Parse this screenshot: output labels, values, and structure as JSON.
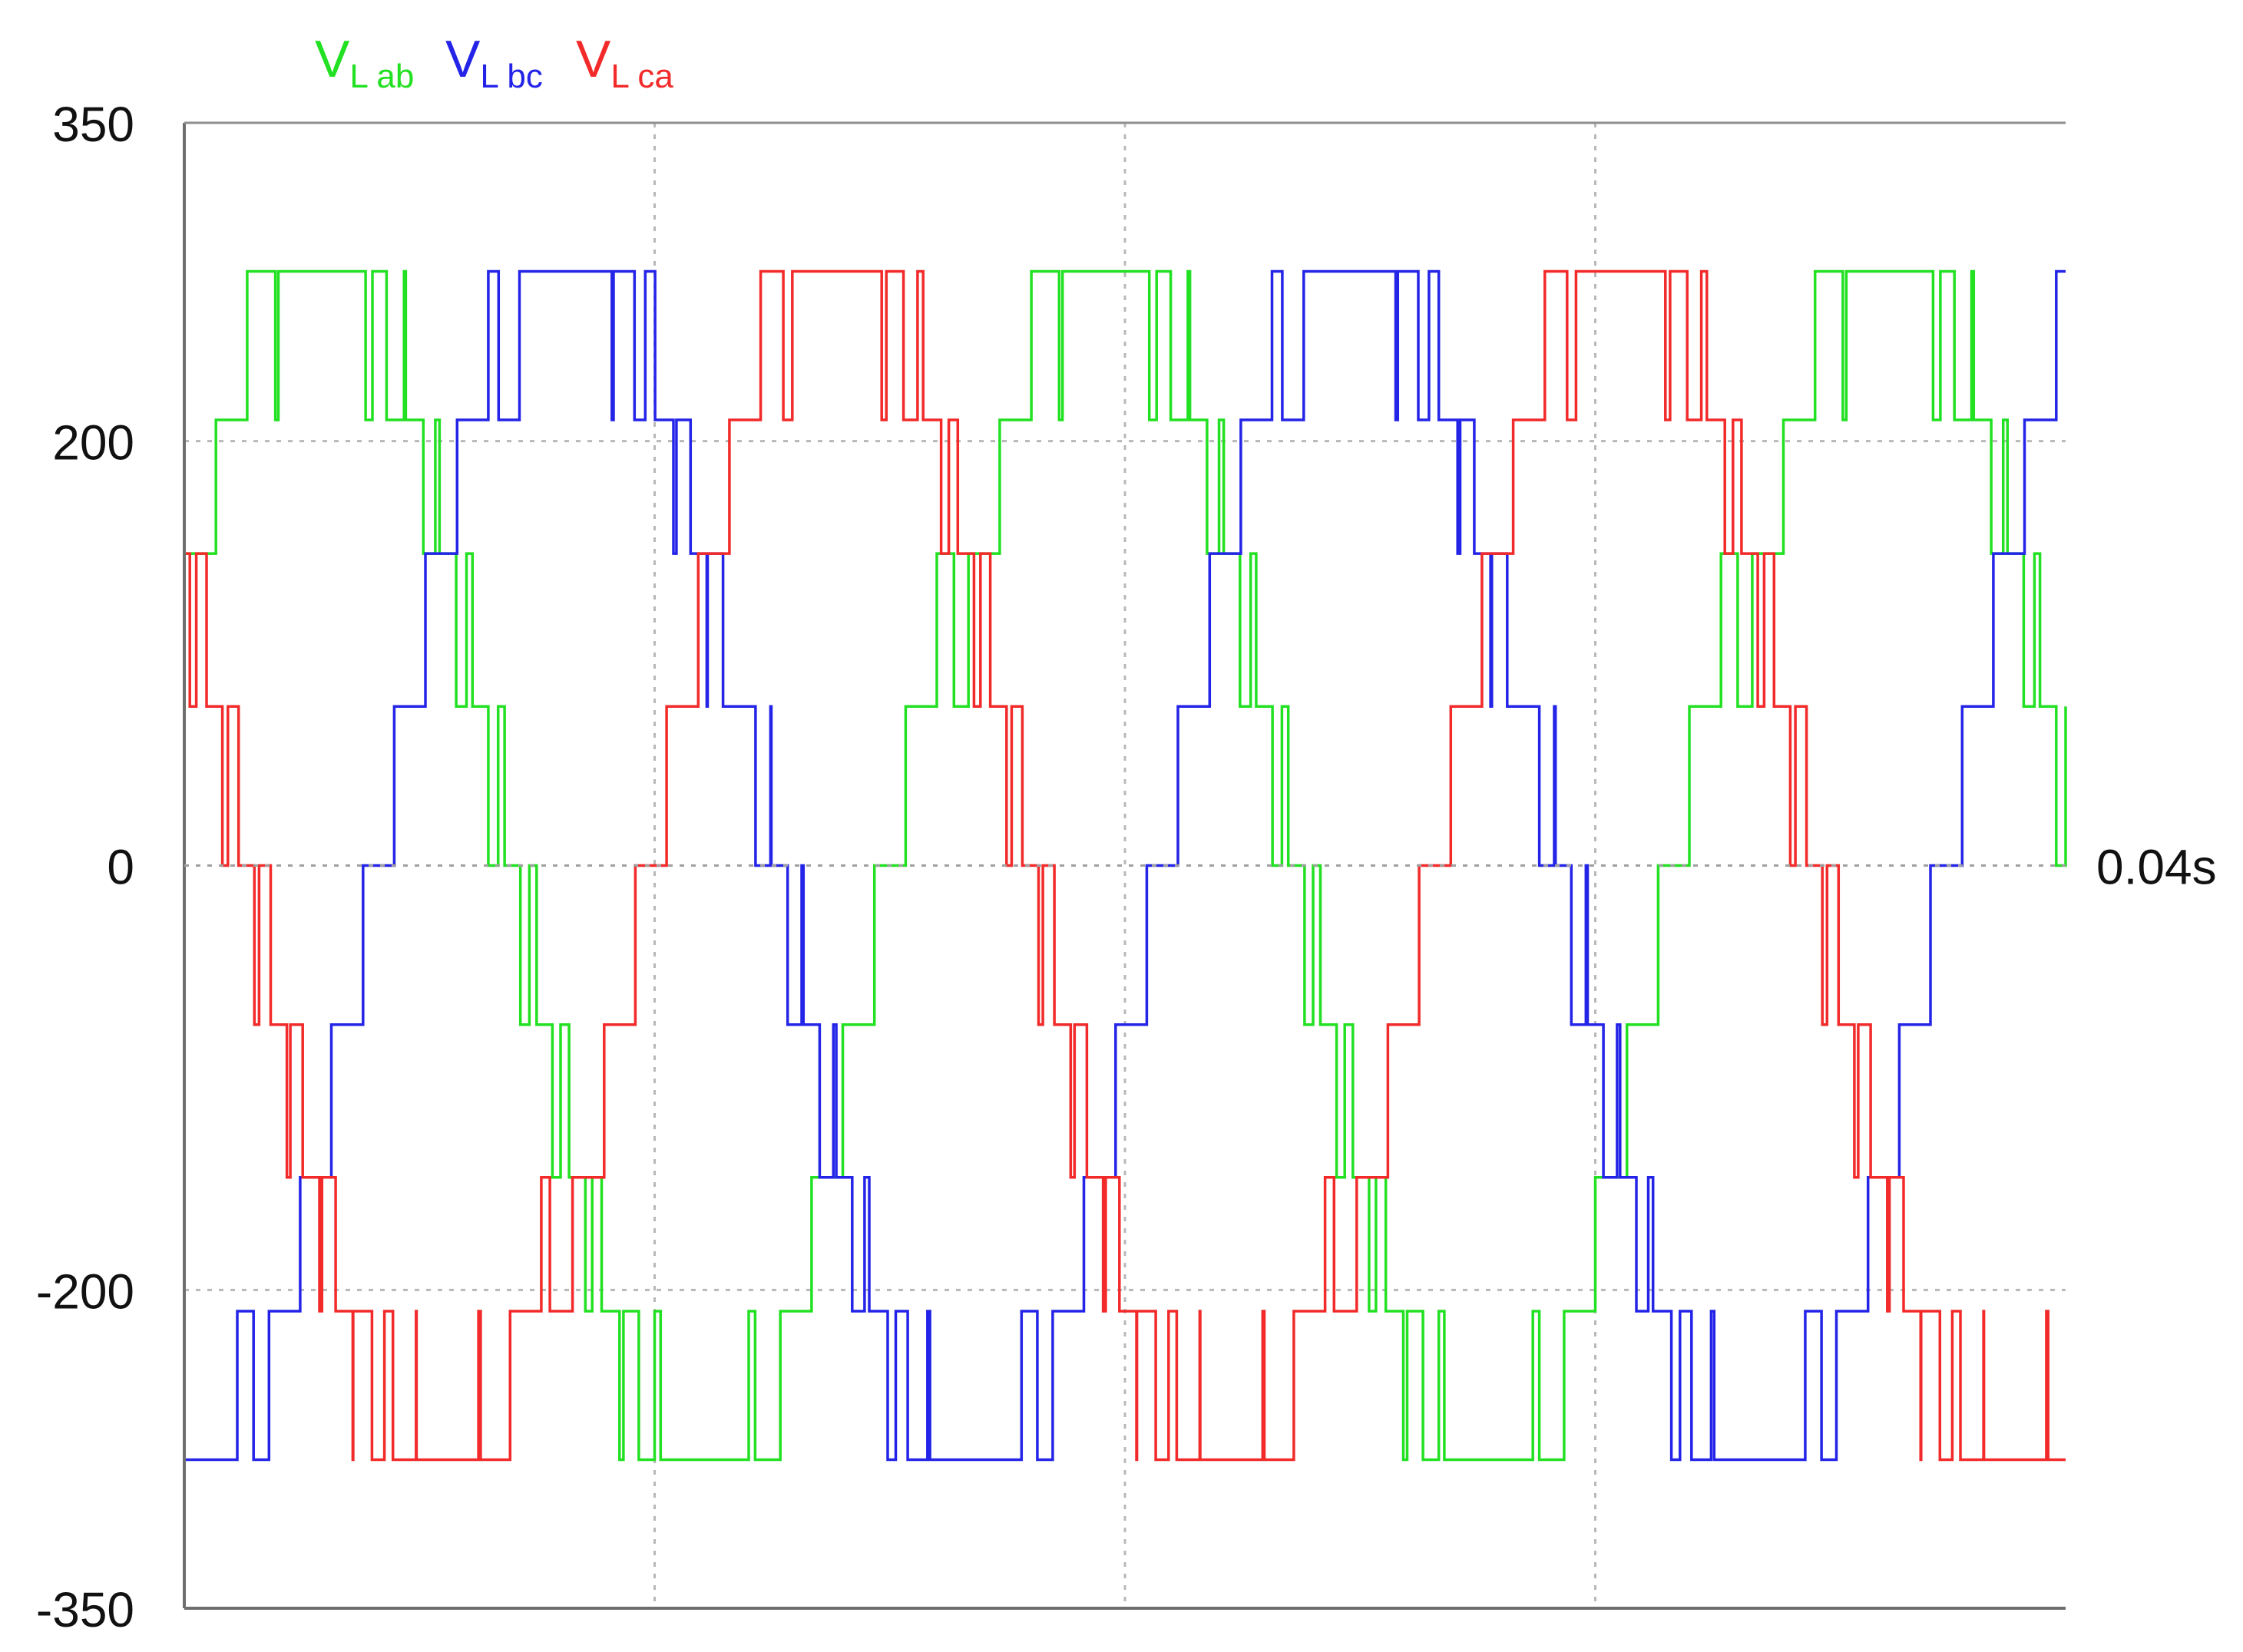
{
  "legend": [
    {
      "main": "V",
      "sub": "L ab",
      "color": "#22e022"
    },
    {
      "main": "V",
      "sub": "L bc",
      "color": "#2424e8"
    },
    {
      "main": "V",
      "sub": "L ca",
      "color": "#f22a2a"
    }
  ],
  "chart_data": {
    "type": "line",
    "title": "",
    "xlabel": "",
    "ylabel": "",
    "ylim": [
      -350,
      350
    ],
    "xlim": [
      0,
      0.04
    ],
    "y_ticks": [
      350,
      200,
      0,
      -200,
      -350
    ],
    "x_end_label": "0.04s",
    "grid": true,
    "legend_position": "top-left",
    "levels": [
      -280,
      -210,
      -147,
      -75,
      0,
      75,
      147,
      210,
      280
    ],
    "fundamental_hz": 60,
    "series": [
      {
        "name": "VL ab",
        "color": "#22e022",
        "phase_deg": 30
      },
      {
        "name": "VL bc",
        "color": "#2424e8",
        "phase_deg": -90
      },
      {
        "name": "VL ca",
        "color": "#f22a2a",
        "phase_deg": 150
      }
    ]
  }
}
